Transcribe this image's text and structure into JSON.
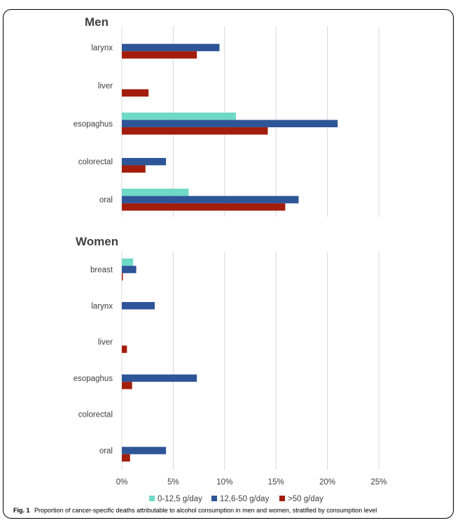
{
  "caption": {
    "label": "Fig. 1",
    "text": "Proportion of cancer-specific deaths attributable to alcohol consumption in men and women, stratified by consumption level"
  },
  "colors": {
    "light": "#6fd9c7",
    "medium": "#2e5597",
    "high": "#a31d0c"
  },
  "chart_data": [
    {
      "type": "bar",
      "orientation": "horizontal",
      "title": "Men",
      "categories": [
        "larynx",
        "liver",
        "esopaghus",
        "colorectal",
        "oral"
      ],
      "series": [
        {
          "name": "0-12,5 g/day",
          "color": "#6fd9c7",
          "values": [
            0,
            0,
            11.1,
            0,
            6.5
          ]
        },
        {
          "name": "12,6-50 g/day",
          "color": "#2e5597",
          "values": [
            9.5,
            0,
            21.0,
            4.3,
            17.2
          ]
        },
        {
          "name": ">50 g/day",
          "color": "#a31d0c",
          "values": [
            7.3,
            2.6,
            14.2,
            2.3,
            15.9
          ]
        }
      ],
      "xlim": [
        0,
        25
      ],
      "x_ticks": [
        0,
        5,
        10,
        15,
        20,
        25
      ],
      "grid": true
    },
    {
      "type": "bar",
      "orientation": "horizontal",
      "title": "Women",
      "categories": [
        "breast",
        "larynx",
        "liver",
        "esopaghus",
        "colorectal",
        "oral"
      ],
      "series": [
        {
          "name": "0-12,5 g/day",
          "color": "#6fd9c7",
          "values": [
            1.1,
            0,
            0,
            0,
            0,
            0
          ]
        },
        {
          "name": "12,6-50 g/day",
          "color": "#2e5597",
          "values": [
            1.4,
            3.2,
            0,
            7.3,
            0,
            4.3
          ]
        },
        {
          "name": ">50 g/day",
          "color": "#a31d0c",
          "values": [
            0.1,
            0,
            0.5,
            1.0,
            0,
            0.8
          ]
        }
      ],
      "xlim": [
        0,
        25
      ],
      "x_ticks": [
        0,
        5,
        10,
        15,
        20,
        25
      ],
      "x_tick_labels": [
        "0%",
        "5%",
        "10%",
        "15%",
        "20%",
        "25%"
      ],
      "grid": true
    }
  ],
  "legend": {
    "placement": "bottom",
    "items": [
      "0-12,5 g/day",
      "12,6-50 g/day",
      ">50 g/day"
    ]
  }
}
